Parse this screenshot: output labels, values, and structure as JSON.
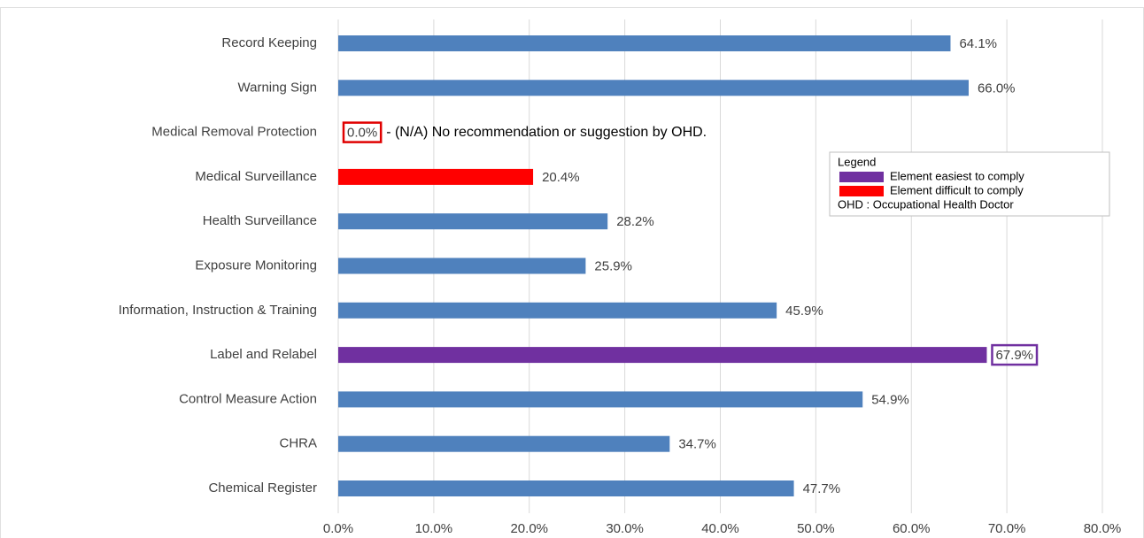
{
  "chart_data": {
    "type": "barh",
    "categories": [
      "Record Keeping",
      "Warning Sign",
      "Medical Removal Protection",
      "Medical Surveillance",
      "Health Surveillance",
      "Exposure Monitoring",
      "Information, Instruction & Training",
      "Label and Relabel",
      "Control Measure Action",
      "CHRA",
      "Chemical Register"
    ],
    "values": [
      64.1,
      66.0,
      0.0,
      20.4,
      28.2,
      25.9,
      45.9,
      67.9,
      54.9,
      34.7,
      47.7
    ],
    "value_labels": [
      "64.1%",
      "66.0%",
      "0.0%",
      "20.4%",
      "28.2%",
      "25.9%",
      "45.9%",
      "67.9%",
      "54.9%",
      "34.7%",
      "47.7%"
    ],
    "colors": [
      "#4f81bd",
      "#4f81bd",
      "#4f81bd",
      "#ff0000",
      "#4f81bd",
      "#4f81bd",
      "#4f81bd",
      "#7030a0",
      "#4f81bd",
      "#4f81bd",
      "#4f81bd"
    ],
    "label_box_colors": [
      null,
      null,
      "#e00000",
      null,
      null,
      null,
      null,
      "#7030a0",
      null,
      null,
      null
    ],
    "annotation": "- (N/A) No recommendation or suggestion by OHD.",
    "xlim": [
      0,
      80
    ],
    "xticks": [
      {
        "value": 0,
        "label": "0.0%"
      },
      {
        "value": 10,
        "label": "10.0%"
      },
      {
        "value": 20,
        "label": "20.0%"
      },
      {
        "value": 30,
        "label": "30.0%"
      },
      {
        "value": 40,
        "label": "40.0%"
      },
      {
        "value": 50,
        "label": "50.0%"
      },
      {
        "value": 60,
        "label": "60.0%"
      },
      {
        "value": 70,
        "label": "70.0%"
      },
      {
        "value": 80,
        "label": "80.0%"
      }
    ],
    "grid": true,
    "legend": {
      "title": "Legend",
      "entries": [
        {
          "name": "Element easiest to comply",
          "color": "#7030a0"
        },
        {
          "name": "Element difficult to comply",
          "color": "#ff0000"
        },
        {
          "name": "OHD : Occupational Health Doctor"
        }
      ]
    }
  }
}
